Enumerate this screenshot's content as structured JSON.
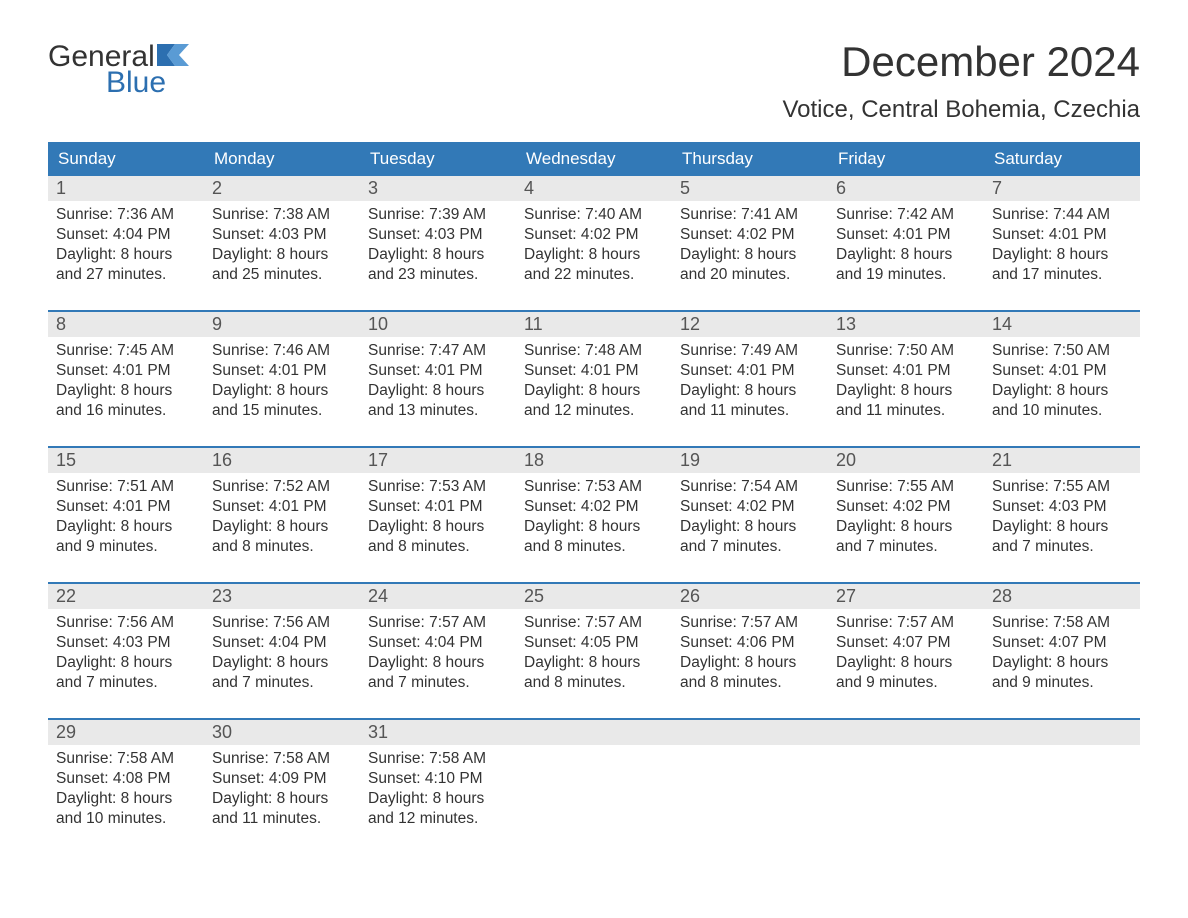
{
  "brand": {
    "general": "General",
    "blue": "Blue"
  },
  "title": "December 2024",
  "location": "Votice, Central Bohemia, Czechia",
  "day_names": [
    "Sunday",
    "Monday",
    "Tuesday",
    "Wednesday",
    "Thursday",
    "Friday",
    "Saturday"
  ],
  "colors": {
    "header_bg": "#3279b7",
    "header_text": "#ffffff",
    "daynum_bg": "#e9e9e9",
    "daynum_text": "#555555",
    "body_text": "#333333",
    "week_border": "#3279b7",
    "logo_blue": "#2c6fb0",
    "background": "#ffffff"
  },
  "typography": {
    "title_fontsize": 42,
    "location_fontsize": 24,
    "dayheader_fontsize": 17,
    "daynum_fontsize": 18,
    "body_fontsize": 15.5,
    "logo_fontsize": 30
  },
  "weeks": [
    [
      {
        "n": "1",
        "sunrise": "Sunrise: 7:36 AM",
        "sunset": "Sunset: 4:04 PM",
        "d1": "Daylight: 8 hours",
        "d2": "and 27 minutes."
      },
      {
        "n": "2",
        "sunrise": "Sunrise: 7:38 AM",
        "sunset": "Sunset: 4:03 PM",
        "d1": "Daylight: 8 hours",
        "d2": "and 25 minutes."
      },
      {
        "n": "3",
        "sunrise": "Sunrise: 7:39 AM",
        "sunset": "Sunset: 4:03 PM",
        "d1": "Daylight: 8 hours",
        "d2": "and 23 minutes."
      },
      {
        "n": "4",
        "sunrise": "Sunrise: 7:40 AM",
        "sunset": "Sunset: 4:02 PM",
        "d1": "Daylight: 8 hours",
        "d2": "and 22 minutes."
      },
      {
        "n": "5",
        "sunrise": "Sunrise: 7:41 AM",
        "sunset": "Sunset: 4:02 PM",
        "d1": "Daylight: 8 hours",
        "d2": "and 20 minutes."
      },
      {
        "n": "6",
        "sunrise": "Sunrise: 7:42 AM",
        "sunset": "Sunset: 4:01 PM",
        "d1": "Daylight: 8 hours",
        "d2": "and 19 minutes."
      },
      {
        "n": "7",
        "sunrise": "Sunrise: 7:44 AM",
        "sunset": "Sunset: 4:01 PM",
        "d1": "Daylight: 8 hours",
        "d2": "and 17 minutes."
      }
    ],
    [
      {
        "n": "8",
        "sunrise": "Sunrise: 7:45 AM",
        "sunset": "Sunset: 4:01 PM",
        "d1": "Daylight: 8 hours",
        "d2": "and 16 minutes."
      },
      {
        "n": "9",
        "sunrise": "Sunrise: 7:46 AM",
        "sunset": "Sunset: 4:01 PM",
        "d1": "Daylight: 8 hours",
        "d2": "and 15 minutes."
      },
      {
        "n": "10",
        "sunrise": "Sunrise: 7:47 AM",
        "sunset": "Sunset: 4:01 PM",
        "d1": "Daylight: 8 hours",
        "d2": "and 13 minutes."
      },
      {
        "n": "11",
        "sunrise": "Sunrise: 7:48 AM",
        "sunset": "Sunset: 4:01 PM",
        "d1": "Daylight: 8 hours",
        "d2": "and 12 minutes."
      },
      {
        "n": "12",
        "sunrise": "Sunrise: 7:49 AM",
        "sunset": "Sunset: 4:01 PM",
        "d1": "Daylight: 8 hours",
        "d2": "and 11 minutes."
      },
      {
        "n": "13",
        "sunrise": "Sunrise: 7:50 AM",
        "sunset": "Sunset: 4:01 PM",
        "d1": "Daylight: 8 hours",
        "d2": "and 11 minutes."
      },
      {
        "n": "14",
        "sunrise": "Sunrise: 7:50 AM",
        "sunset": "Sunset: 4:01 PM",
        "d1": "Daylight: 8 hours",
        "d2": "and 10 minutes."
      }
    ],
    [
      {
        "n": "15",
        "sunrise": "Sunrise: 7:51 AM",
        "sunset": "Sunset: 4:01 PM",
        "d1": "Daylight: 8 hours",
        "d2": "and 9 minutes."
      },
      {
        "n": "16",
        "sunrise": "Sunrise: 7:52 AM",
        "sunset": "Sunset: 4:01 PM",
        "d1": "Daylight: 8 hours",
        "d2": "and 8 minutes."
      },
      {
        "n": "17",
        "sunrise": "Sunrise: 7:53 AM",
        "sunset": "Sunset: 4:01 PM",
        "d1": "Daylight: 8 hours",
        "d2": "and 8 minutes."
      },
      {
        "n": "18",
        "sunrise": "Sunrise: 7:53 AM",
        "sunset": "Sunset: 4:02 PM",
        "d1": "Daylight: 8 hours",
        "d2": "and 8 minutes."
      },
      {
        "n": "19",
        "sunrise": "Sunrise: 7:54 AM",
        "sunset": "Sunset: 4:02 PM",
        "d1": "Daylight: 8 hours",
        "d2": "and 7 minutes."
      },
      {
        "n": "20",
        "sunrise": "Sunrise: 7:55 AM",
        "sunset": "Sunset: 4:02 PM",
        "d1": "Daylight: 8 hours",
        "d2": "and 7 minutes."
      },
      {
        "n": "21",
        "sunrise": "Sunrise: 7:55 AM",
        "sunset": "Sunset: 4:03 PM",
        "d1": "Daylight: 8 hours",
        "d2": "and 7 minutes."
      }
    ],
    [
      {
        "n": "22",
        "sunrise": "Sunrise: 7:56 AM",
        "sunset": "Sunset: 4:03 PM",
        "d1": "Daylight: 8 hours",
        "d2": "and 7 minutes."
      },
      {
        "n": "23",
        "sunrise": "Sunrise: 7:56 AM",
        "sunset": "Sunset: 4:04 PM",
        "d1": "Daylight: 8 hours",
        "d2": "and 7 minutes."
      },
      {
        "n": "24",
        "sunrise": "Sunrise: 7:57 AM",
        "sunset": "Sunset: 4:04 PM",
        "d1": "Daylight: 8 hours",
        "d2": "and 7 minutes."
      },
      {
        "n": "25",
        "sunrise": "Sunrise: 7:57 AM",
        "sunset": "Sunset: 4:05 PM",
        "d1": "Daylight: 8 hours",
        "d2": "and 8 minutes."
      },
      {
        "n": "26",
        "sunrise": "Sunrise: 7:57 AM",
        "sunset": "Sunset: 4:06 PM",
        "d1": "Daylight: 8 hours",
        "d2": "and 8 minutes."
      },
      {
        "n": "27",
        "sunrise": "Sunrise: 7:57 AM",
        "sunset": "Sunset: 4:07 PM",
        "d1": "Daylight: 8 hours",
        "d2": "and 9 minutes."
      },
      {
        "n": "28",
        "sunrise": "Sunrise: 7:58 AM",
        "sunset": "Sunset: 4:07 PM",
        "d1": "Daylight: 8 hours",
        "d2": "and 9 minutes."
      }
    ],
    [
      {
        "n": "29",
        "sunrise": "Sunrise: 7:58 AM",
        "sunset": "Sunset: 4:08 PM",
        "d1": "Daylight: 8 hours",
        "d2": "and 10 minutes."
      },
      {
        "n": "30",
        "sunrise": "Sunrise: 7:58 AM",
        "sunset": "Sunset: 4:09 PM",
        "d1": "Daylight: 8 hours",
        "d2": "and 11 minutes."
      },
      {
        "n": "31",
        "sunrise": "Sunrise: 7:58 AM",
        "sunset": "Sunset: 4:10 PM",
        "d1": "Daylight: 8 hours",
        "d2": "and 12 minutes."
      },
      null,
      null,
      null,
      null
    ]
  ]
}
